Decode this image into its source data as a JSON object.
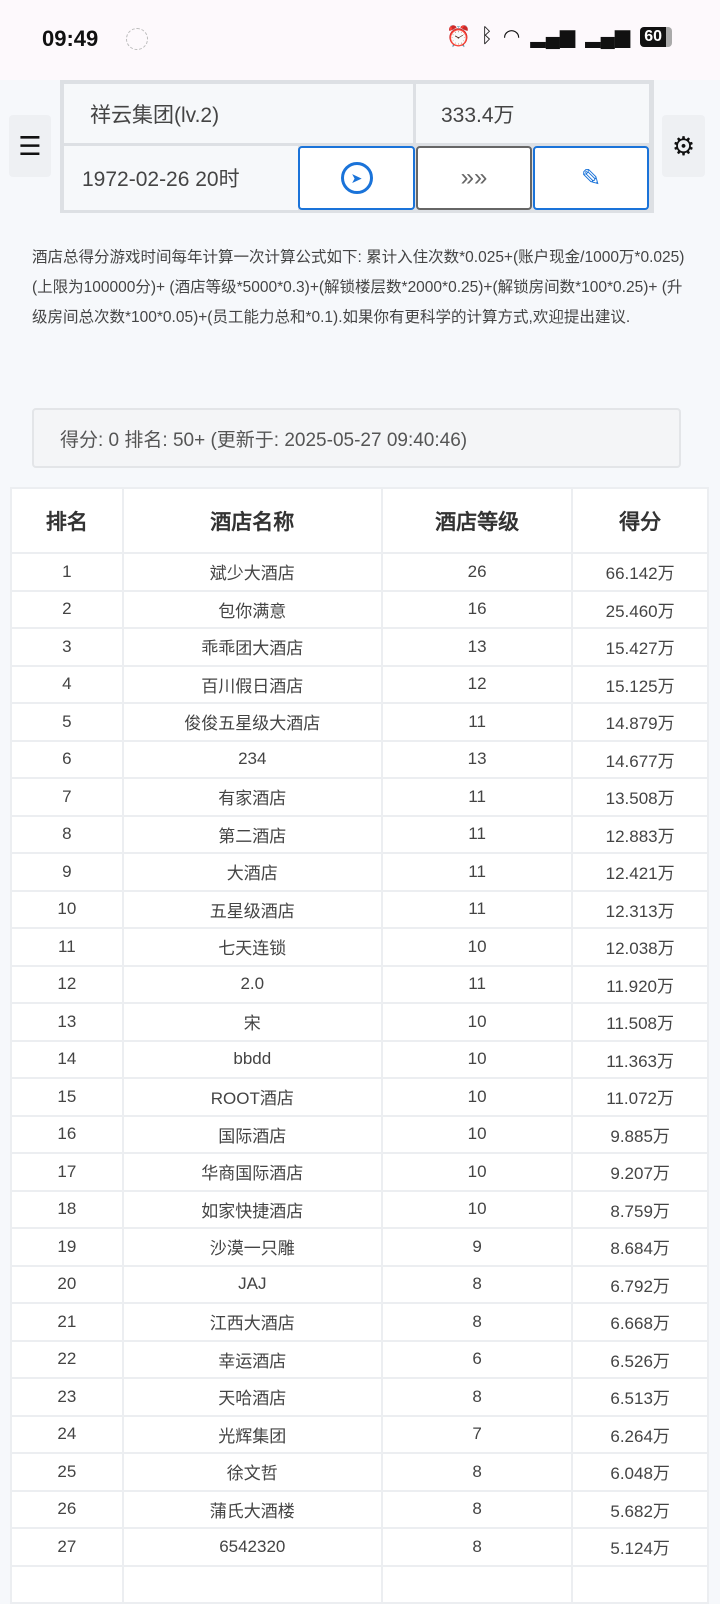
{
  "status_bar": {
    "time": "09:49",
    "battery": "60"
  },
  "header": {
    "company": "祥云集团(lv.2)",
    "money": "333.4万",
    "game_time": "1972-02-26 20时"
  },
  "description": "酒店总得分游戏时间每年计算一次计算公式如下: 累计入住次数*0.025+(账户现金/1000万*0.025)(上限为100000分)+ (酒店等级*5000*0.3)+(解锁楼层数*2000*0.25)+(解锁房间数*100*0.25)+ (升级房间总次数*100*0.05)+(员工能力总和*0.1).如果你有更科学的计算方式,欢迎提出建议.",
  "my_score": "得分: 0 排名: 50+ (更新于: 2025-05-27 09:40:46)",
  "table": {
    "headers": [
      "排名",
      "酒店名称",
      "酒店等级",
      "得分"
    ],
    "rows": [
      [
        "1",
        "斌少大酒店",
        "26",
        "66.142万"
      ],
      [
        "2",
        "包你满意",
        "16",
        "25.460万"
      ],
      [
        "3",
        "乖乖团大酒店",
        "13",
        "15.427万"
      ],
      [
        "4",
        "百川假日酒店",
        "12",
        "15.125万"
      ],
      [
        "5",
        "俊俊五星级大酒店",
        "11",
        "14.879万"
      ],
      [
        "6",
        "234",
        "13",
        "14.677万"
      ],
      [
        "7",
        "有家酒店",
        "11",
        "13.508万"
      ],
      [
        "8",
        "第二酒店",
        "11",
        "12.883万"
      ],
      [
        "9",
        "大酒店",
        "11",
        "12.421万"
      ],
      [
        "10",
        "五星级酒店",
        "11",
        "12.313万"
      ],
      [
        "11",
        "七天连锁",
        "10",
        "12.038万"
      ],
      [
        "12",
        "2.0",
        "11",
        "11.920万"
      ],
      [
        "13",
        "宋",
        "10",
        "11.508万"
      ],
      [
        "14",
        "bbdd",
        "10",
        "11.363万"
      ],
      [
        "15",
        "ROOT酒店",
        "10",
        "11.072万"
      ],
      [
        "16",
        "国际酒店",
        "10",
        "9.885万"
      ],
      [
        "17",
        "华商国际酒店",
        "10",
        "9.207万"
      ],
      [
        "18",
        "如家快捷酒店",
        "10",
        "8.759万"
      ],
      [
        "19",
        "沙漠一只雕",
        "9",
        "8.684万"
      ],
      [
        "20",
        "JAJ",
        "8",
        "6.792万"
      ],
      [
        "21",
        "江西大酒店",
        "8",
        "6.668万"
      ],
      [
        "22",
        "幸运酒店",
        "6",
        "6.526万"
      ],
      [
        "23",
        "天哈酒店",
        "8",
        "6.513万"
      ],
      [
        "24",
        "光辉集团",
        "7",
        "6.264万"
      ],
      [
        "25",
        "徐文哲",
        "8",
        "6.048万"
      ],
      [
        "26",
        "蒲氏大酒楼",
        "8",
        "5.682万"
      ],
      [
        "27",
        "6542320",
        "8",
        "5.124万"
      ],
      [
        "",
        "",
        "",
        ""
      ]
    ]
  },
  "colors": {
    "accent": "#1a73d9"
  }
}
